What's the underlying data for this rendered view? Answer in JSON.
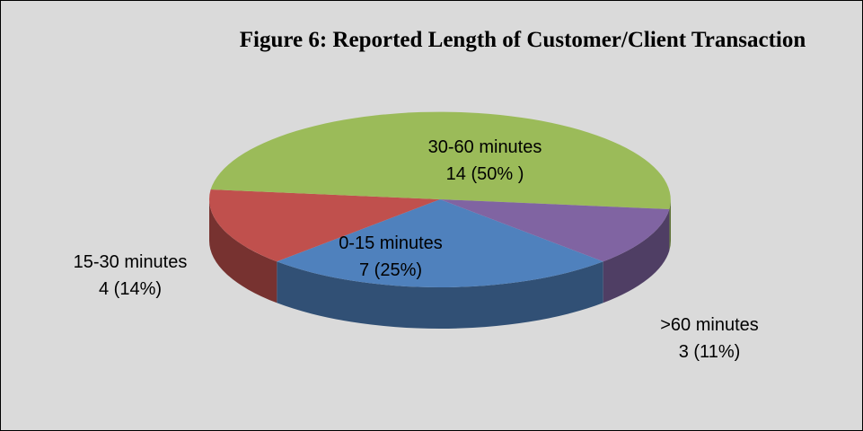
{
  "chart_data": {
    "type": "pie",
    "title": "Figure 6: Reported Length of Customer/Client Transaction",
    "categories": [
      "0-15 minutes",
      "15-30 minutes",
      "30-60 minutes",
      ">60 minutes"
    ],
    "values": [
      7,
      4,
      14,
      3
    ],
    "value_labels": [
      "7 (25%)",
      "4 (14%)",
      "14 (50% )",
      "3 (11%)"
    ],
    "colors": [
      "#4f81bd",
      "#c0504d",
      "#9bbb59",
      "#8064a2"
    ]
  }
}
